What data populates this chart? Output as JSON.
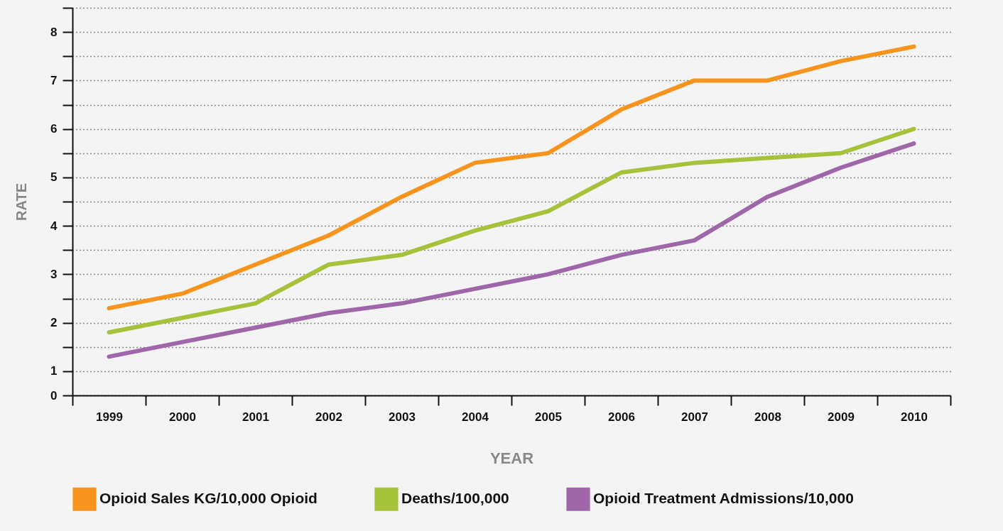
{
  "chart_data": {
    "type": "line",
    "xlabel": "YEAR",
    "ylabel": "RATE",
    "categories": [
      "1999",
      "2000",
      "2001",
      "2002",
      "2003",
      "2004",
      "2005",
      "2006",
      "2007",
      "2008",
      "2009",
      "2010"
    ],
    "series": [
      {
        "name": "Opioid Sales KG/10,000 Opioid",
        "color": "#f7941d",
        "values": [
          2.3,
          2.6,
          3.2,
          3.8,
          4.6,
          5.3,
          5.5,
          6.4,
          7.0,
          7.0,
          7.4,
          7.7
        ]
      },
      {
        "name": "Deaths/100,000",
        "color": "#a6c23a",
        "values": [
          1.8,
          2.1,
          2.4,
          3.2,
          3.4,
          3.9,
          4.3,
          5.1,
          5.3,
          5.4,
          5.5,
          6.0
        ]
      },
      {
        "name": "Opioid Treatment Admissions/10,000",
        "color": "#a066aa",
        "values": [
          1.3,
          1.6,
          1.9,
          2.2,
          2.4,
          2.7,
          3.0,
          3.4,
          3.7,
          4.6,
          5.2,
          5.7
        ]
      }
    ],
    "ylim": [
      0.5,
      8.5
    ],
    "yticks": [
      {
        "value": 0.5,
        "label": "0"
      },
      1,
      {
        "value": 1.5,
        "label": null
      },
      2,
      {
        "value": 2.5,
        "label": null
      },
      3,
      {
        "value": 3.5,
        "label": null
      },
      4,
      {
        "value": 4.5,
        "label": null
      },
      5,
      {
        "value": 5.5,
        "label": null
      },
      6,
      {
        "value": 6.5,
        "label": null
      },
      7,
      {
        "value": 7.5,
        "label": null
      },
      8,
      {
        "value": 8.5,
        "label": null
      }
    ],
    "grid": "y",
    "legend": "bottom",
    "marker": "none",
    "line_style": "solid"
  }
}
